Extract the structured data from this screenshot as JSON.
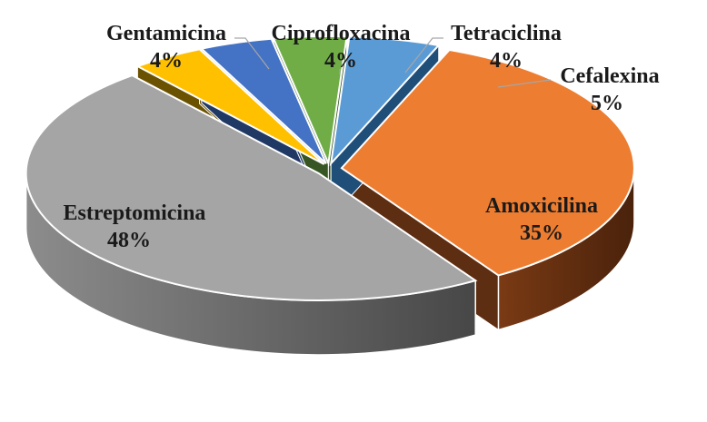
{
  "chart_data": {
    "type": "pie",
    "title": "",
    "style": "3d-exploded",
    "slices": [
      {
        "name": "Amoxicilina",
        "percent_label": "35%",
        "value": 35,
        "color": "#ED7D31",
        "side_color": "#5E2E12",
        "label_inside": true
      },
      {
        "name": "Estreptomicina",
        "percent_label": "48%",
        "value": 48,
        "color": "#A5A5A5",
        "side_color": "#6E6E6E",
        "label_inside": true
      },
      {
        "name": "Gentamicina",
        "percent_label": "4%",
        "value": 4,
        "color": "#FFC000",
        "side_color": "#6B5200",
        "label_inside": false
      },
      {
        "name": "Ciprofloxacina",
        "percent_label": "4%",
        "value": 4,
        "color": "#4472C4",
        "side_color": "#1F3864",
        "label_inside": false
      },
      {
        "name": "Tetraciclina",
        "percent_label": "4%",
        "value": 4,
        "color": "#70AD47",
        "side_color": "#375623",
        "label_inside": false
      },
      {
        "name": "Cefalexina",
        "percent_label": "5%",
        "value": 5,
        "color": "#5B9BD5",
        "side_color": "#1F4E79",
        "label_inside": false
      }
    ]
  }
}
